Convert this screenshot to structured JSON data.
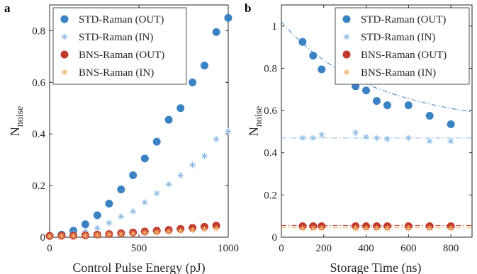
{
  "chart_data": [
    {
      "panel_label": "a",
      "type": "scatter",
      "xlabel": "Control Pulse Energy (pJ)",
      "ylabel": "N",
      "ylabel_sub": "noise",
      "xlim": [
        0,
        1000
      ],
      "ylim": [
        0,
        0.9
      ],
      "xticks": [
        "0",
        "500",
        "1000"
      ],
      "yticks": [
        "0",
        "0.2",
        "0.4",
        "0.6",
        "0.8"
      ],
      "legend_position": "top-left",
      "grid": false,
      "series": [
        {
          "name": "STD-Raman (OUT)",
          "marker": "circle",
          "color": "#3b82c4",
          "x": [
            0,
            67,
            133,
            200,
            267,
            333,
            400,
            467,
            533,
            600,
            667,
            733,
            800,
            867,
            933,
            1000
          ],
          "y": [
            0.005,
            0.01,
            0.025,
            0.05,
            0.085,
            0.13,
            0.185,
            0.24,
            0.305,
            0.37,
            0.455,
            0.5,
            0.6,
            0.665,
            0.795,
            0.85
          ]
        },
        {
          "name": "STD-Raman (IN)",
          "marker": "asterisk",
          "color": "#8ab9e4",
          "x": [
            0,
            67,
            133,
            200,
            267,
            333,
            400,
            467,
            533,
            600,
            667,
            733,
            800,
            867,
            933,
            1000
          ],
          "y": [
            0.005,
            0.008,
            0.015,
            0.022,
            0.035,
            0.055,
            0.08,
            0.1,
            0.135,
            0.17,
            0.205,
            0.24,
            0.28,
            0.315,
            0.38,
            0.41
          ]
        },
        {
          "name": "BNS-Raman (OUT)",
          "marker": "circle",
          "color": "#c0392b",
          "x": [
            0,
            67,
            133,
            200,
            267,
            333,
            400,
            467,
            533,
            600,
            667,
            733,
            800,
            867,
            933
          ],
          "y": [
            0.005,
            0.006,
            0.006,
            0.007,
            0.01,
            0.012,
            0.015,
            0.018,
            0.022,
            0.025,
            0.028,
            0.032,
            0.036,
            0.04,
            0.045
          ]
        },
        {
          "name": "BNS-Raman (IN)",
          "marker": "asterisk",
          "color": "#f5b36b",
          "x": [
            0,
            67,
            133,
            200,
            267,
            333,
            400,
            467,
            533,
            600,
            667,
            733,
            800,
            867,
            933
          ],
          "y": [
            0.004,
            0.005,
            0.005,
            0.006,
            0.008,
            0.01,
            0.012,
            0.014,
            0.017,
            0.019,
            0.022,
            0.025,
            0.028,
            0.031,
            0.034
          ]
        }
      ]
    },
    {
      "panel_label": "b",
      "type": "scatter",
      "xlabel": "Storage Time (ns)",
      "ylabel": "N",
      "ylabel_sub": "noise",
      "xlim": [
        0,
        900
      ],
      "ylim": [
        0,
        1.1
      ],
      "xticks": [
        "0",
        "200",
        "400",
        "600",
        "800"
      ],
      "yticks": [
        "0",
        "0.2",
        "0.4",
        "0.6",
        "0.8",
        "1"
      ],
      "legend_position": "top-right",
      "grid": false,
      "series": [
        {
          "name": "STD-Raman (OUT)",
          "marker": "circle",
          "color": "#3b82c4",
          "x": [
            100,
            150,
            190,
            350,
            400,
            450,
            500,
            600,
            700,
            800
          ],
          "y": [
            0.925,
            0.86,
            0.795,
            0.715,
            0.695,
            0.645,
            0.625,
            0.625,
            0.575,
            0.535
          ],
          "fit": {
            "style": "dash-dot",
            "x": [
              0,
              50,
              100,
              150,
              200,
              250,
              300,
              350,
              400,
              450,
              500,
              550,
              600,
              650,
              700,
              750,
              800,
              850,
              900
            ],
            "y": [
              1.02,
              0.965,
              0.917,
              0.875,
              0.838,
              0.805,
              0.776,
              0.75,
              0.727,
              0.706,
              0.688,
              0.671,
              0.656,
              0.643,
              0.631,
              0.62,
              0.61,
              0.601,
              0.594
            ]
          }
        },
        {
          "name": "STD-Raman (IN)",
          "marker": "asterisk",
          "color": "#8ab9e4",
          "x": [
            100,
            150,
            190,
            350,
            400,
            450,
            500,
            600,
            700,
            800
          ],
          "y": [
            0.47,
            0.47,
            0.485,
            0.495,
            0.475,
            0.47,
            0.465,
            0.47,
            0.455,
            0.455
          ],
          "fit": {
            "style": "dash-dot",
            "x": [
              0,
              900
            ],
            "y": [
              0.47,
              0.47
            ]
          }
        },
        {
          "name": "BNS-Raman (OUT)",
          "marker": "circle",
          "color": "#c0392b",
          "x": [
            100,
            150,
            190,
            350,
            400,
            450,
            500,
            600,
            700,
            800
          ],
          "y": [
            0.052,
            0.052,
            0.052,
            0.052,
            0.052,
            0.052,
            0.052,
            0.052,
            0.052,
            0.052
          ],
          "fit": {
            "style": "dash-dot",
            "x": [
              0,
              900
            ],
            "y": [
              0.055,
              0.055
            ]
          }
        },
        {
          "name": "BNS-Raman (IN)",
          "marker": "asterisk",
          "color": "#f5b36b",
          "x": [
            100,
            150,
            190,
            350,
            400,
            450,
            500,
            600,
            700,
            800
          ],
          "y": [
            0.042,
            0.042,
            0.042,
            0.042,
            0.042,
            0.042,
            0.042,
            0.042,
            0.042,
            0.042
          ],
          "fit": {
            "style": "dash-dot",
            "x": [
              0,
              900
            ],
            "y": [
              0.045,
              0.045
            ]
          }
        }
      ]
    }
  ]
}
